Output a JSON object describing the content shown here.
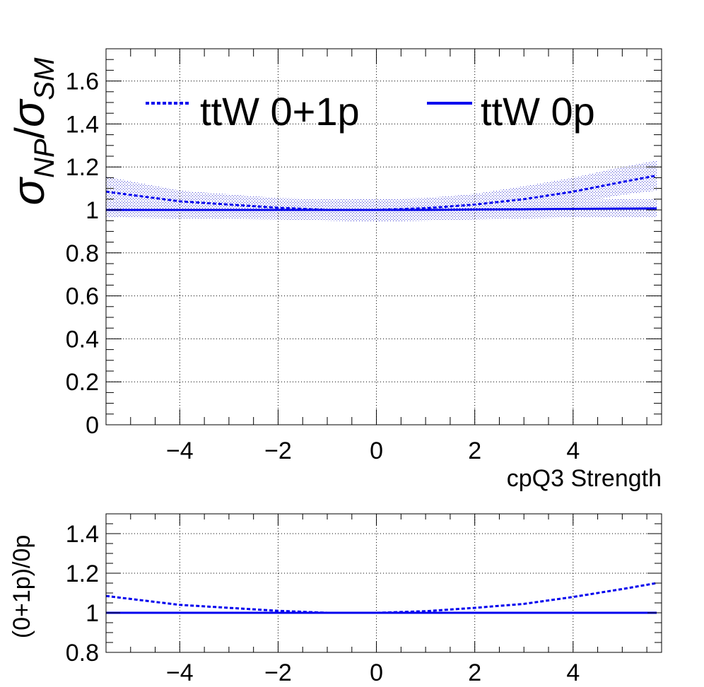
{
  "chart_data": [
    {
      "type": "line",
      "xlabel": "cpQ3 Strength",
      "ylabel": "σ_NP/σ_SM",
      "ylabel_parts": {
        "sigma": "σ",
        "np": "NP",
        "slash": "/",
        "sm": "SM"
      },
      "xlim": [
        -5.5,
        5.8
      ],
      "ylim": [
        0,
        1.75
      ],
      "grid": true,
      "legend_placement": "top",
      "x_ticks": [
        -4,
        -2,
        0,
        2,
        4
      ],
      "x_tick_labels": [
        "−4",
        "−2",
        "0",
        "2",
        "4"
      ],
      "y_ticks": [
        0,
        0.2,
        0.4,
        0.6,
        0.8,
        1,
        1.2,
        1.4,
        1.6
      ],
      "y_tick_labels": [
        "0",
        "0.2",
        "0.4",
        "0.6",
        "0.8",
        "1",
        "1.2",
        "1.4",
        "1.6"
      ],
      "x": [
        -5.5,
        -4,
        -2,
        -1,
        0,
        1,
        2,
        3,
        4,
        5,
        5.7
      ],
      "series": [
        {
          "name": "ttW 0+1p",
          "style": "dashed",
          "color": "#0000ee",
          "y": [
            1.085,
            1.04,
            1.01,
            1.0,
            1.0,
            1.008,
            1.025,
            1.05,
            1.085,
            1.13,
            1.16
          ],
          "band_low": [
            1.01,
            0.99,
            0.975,
            0.97,
            0.965,
            0.97,
            0.98,
            1.0,
            1.03,
            1.07,
            1.09
          ],
          "band_high": [
            1.155,
            1.09,
            1.055,
            1.05,
            1.05,
            1.055,
            1.075,
            1.11,
            1.15,
            1.2,
            1.23
          ]
        },
        {
          "name": "ttW 0p",
          "style": "solid",
          "color": "#0000ee",
          "y": [
            1.0,
            1.0,
            1.0,
            1.0,
            1.0,
            1.0,
            1.002,
            1.003,
            1.005,
            1.006,
            1.007
          ],
          "band_low": [
            0.965,
            0.96,
            0.955,
            0.95,
            0.945,
            0.95,
            0.955,
            0.96,
            0.965,
            0.965,
            0.965
          ],
          "band_high": [
            1.04,
            1.04,
            1.045,
            1.045,
            1.05,
            1.045,
            1.045,
            1.045,
            1.045,
            1.05,
            1.05
          ]
        }
      ]
    },
    {
      "type": "line",
      "xlabel": "",
      "ylabel": "(0+1p)/0p",
      "xlim": [
        -5.5,
        5.8
      ],
      "ylim": [
        0.8,
        1.5
      ],
      "grid": true,
      "x_ticks": [
        -4,
        -2,
        0,
        2,
        4
      ],
      "x_tick_labels": [
        "−4",
        "−2",
        "0",
        "2",
        "4"
      ],
      "y_ticks": [
        0.8,
        1,
        1.2,
        1.4
      ],
      "y_tick_labels": [
        "0.8",
        "1",
        "1.2",
        "1.4"
      ],
      "x": [
        -5.5,
        -4,
        -2,
        -1,
        0,
        1,
        2,
        3,
        4,
        5,
        5.7
      ],
      "series": [
        {
          "style": "dashed",
          "color": "#0000ee",
          "y": [
            1.085,
            1.04,
            1.01,
            1.0,
            1.0,
            1.008,
            1.025,
            1.045,
            1.08,
            1.12,
            1.15
          ]
        },
        {
          "style": "solid",
          "color": "#0000ee",
          "y": [
            1.0,
            1.0,
            1.0,
            1.0,
            1.0,
            1.0,
            1.0,
            1.0,
            1.0,
            1.0,
            1.0
          ]
        }
      ]
    }
  ]
}
